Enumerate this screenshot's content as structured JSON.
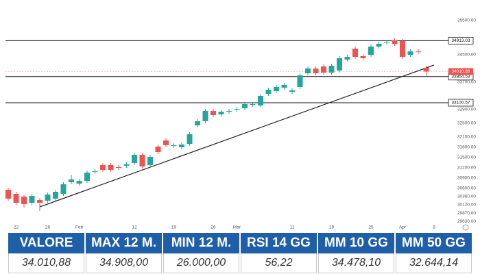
{
  "chart_data": {
    "type": "candlestick",
    "categories": [
      null,
      "22",
      null,
      null,
      null,
      "26",
      null,
      null,
      null,
      "Feb",
      null,
      null,
      null,
      null,
      null,
      null,
      "12",
      null,
      null,
      null,
      null,
      "19",
      null,
      null,
      null,
      null,
      "26",
      null,
      null,
      "Mar",
      null,
      null,
      null,
      null,
      null,
      null,
      "11",
      null,
      null,
      null,
      null,
      "18",
      null,
      null,
      null,
      null,
      "25",
      null,
      null,
      null,
      "Apr",
      null,
      null,
      null,
      "8"
    ],
    "open": [
      30560,
      30440,
      30360,
      30180,
      30260,
      30240,
      30300,
      30440,
      30780,
      30740,
      30820,
      31080,
      31280,
      31280,
      31220,
      31260,
      31340,
      31580,
      31280,
      31820,
      32000,
      31840,
      31800,
      31900,
      32440,
      32560,
      32860,
      32760,
      32840,
      32900,
      32940,
      33040,
      33020,
      33360,
      33440,
      33540,
      33420,
      33560,
      33960,
      34100,
      34160,
      33980,
      34040,
      34360,
      34680,
      34460,
      34500,
      34740,
      34860,
      34920,
      34900,
      34500,
      34600,
      34120,
      null
    ],
    "high": [
      30620,
      30500,
      30420,
      30440,
      30320,
      30480,
      30560,
      30780,
      31000,
      30880,
      31120,
      31160,
      31340,
      31340,
      31280,
      31360,
      31640,
      31640,
      31580,
      31880,
      32060,
      31920,
      31940,
      32240,
      32620,
      32920,
      32920,
      32900,
      32920,
      32980,
      33120,
      33120,
      33360,
      33540,
      33620,
      33680,
      33520,
      33960,
      34160,
      34160,
      34220,
      34240,
      34460,
      34500,
      34740,
      34520,
      34800,
      34880,
      34940,
      34980,
      34960,
      34660,
      34660,
      34180,
      null
    ],
    "low": [
      30240,
      30120,
      30040,
      30120,
      29940,
      30180,
      30240,
      30380,
      30720,
      30680,
      30760,
      31020,
      31080,
      31080,
      31140,
      31200,
      31280,
      31180,
      31220,
      31600,
      31800,
      31780,
      31740,
      31840,
      32380,
      32500,
      32680,
      32700,
      32780,
      32840,
      32880,
      32980,
      32960,
      33300,
      33380,
      33480,
      33360,
      33500,
      33900,
      33900,
      33920,
      33920,
      33980,
      34300,
      34380,
      34340,
      34440,
      34680,
      34800,
      34760,
      34380,
      34440,
      34520,
      33880,
      null
    ],
    "close": [
      30300,
      30180,
      30140,
      30380,
      30180,
      30420,
      30500,
      30720,
      30860,
      30820,
      31060,
      31100,
      31140,
      31140,
      31200,
      31300,
      31580,
      31240,
      31520,
      31660,
      31860,
      31860,
      31880,
      32180,
      32560,
      32860,
      32740,
      32840,
      32860,
      32920,
      33060,
      33060,
      33300,
      33480,
      33560,
      33620,
      33460,
      33900,
      34100,
      33960,
      33980,
      34180,
      34400,
      34440,
      34440,
      34400,
      34740,
      34820,
      34880,
      34820,
      34440,
      34600,
      34580,
      34010.88,
      null
    ],
    "up_color": "#26a69a",
    "down_color": "#ef5350",
    "ylim": [
      29350,
      36100
    ],
    "yticks": [
      {
        "value": 35500,
        "label": "35500.00"
      },
      {
        "value": 34500,
        "label": "34500.00"
      },
      {
        "value": 33700,
        "label": "33700.00"
      },
      {
        "value": 32900,
        "label": "32900.00"
      },
      {
        "value": 32500,
        "label": "32500.00"
      },
      {
        "value": 32100,
        "label": "32100.00"
      },
      {
        "value": 31800,
        "label": "31800.00"
      },
      {
        "value": 31500,
        "label": "31500.00"
      },
      {
        "value": 31200,
        "label": "31200.00"
      },
      {
        "value": 30900,
        "label": "30900.00"
      },
      {
        "value": 30600,
        "label": "30600.00"
      },
      {
        "value": 30360,
        "label": "30360.00"
      },
      {
        "value": 30120,
        "label": "30120.00"
      },
      {
        "value": 29870,
        "label": "29870.00"
      },
      {
        "value": 29630,
        "label": "29630.00"
      }
    ],
    "levels": [
      34913.03,
      33864.53,
      33100.57
    ],
    "trendline": {
      "x": [
        4,
        54
      ],
      "y": [
        30060,
        34200
      ]
    }
  },
  "table": {
    "headers": [
      "VALORE",
      "MAX 12 M.",
      "MIN 12 M.",
      "RSI 14 GG",
      "MM 10 GG",
      "MM 50 GG"
    ],
    "rows": [
      [
        "34.010,88",
        "34.908,00",
        "26.000,00",
        "56,22",
        "34.478,10",
        "32.644,14"
      ]
    ]
  }
}
